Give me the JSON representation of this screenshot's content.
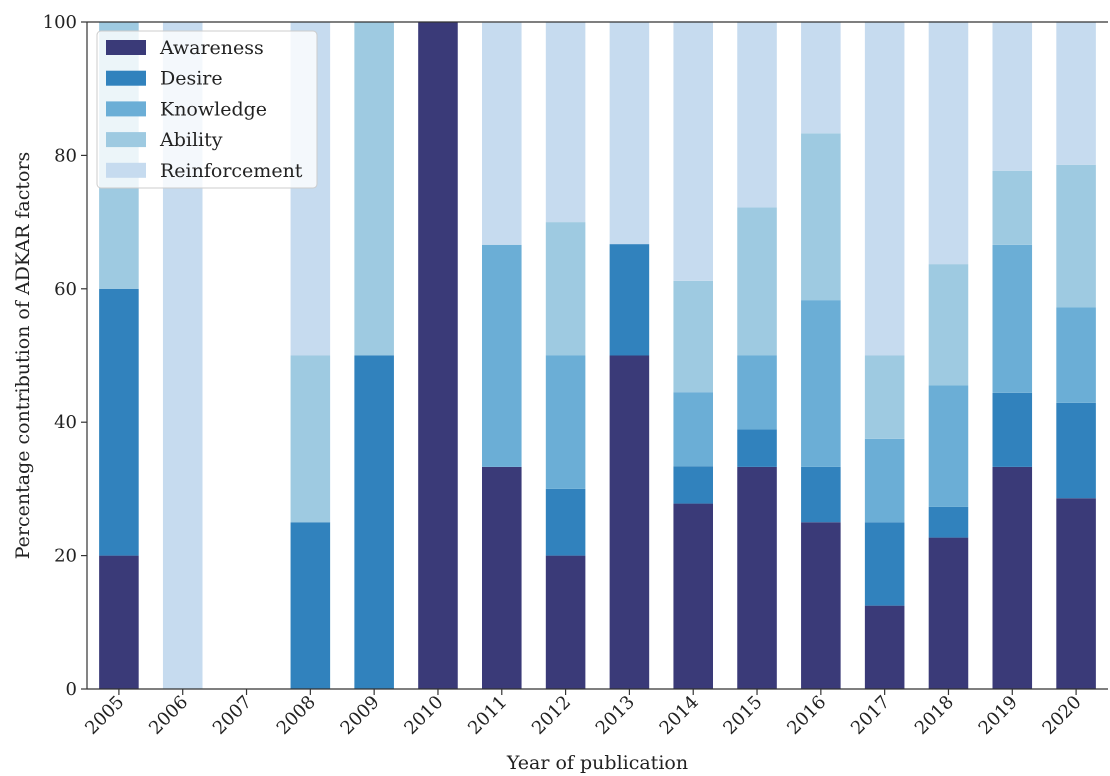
{
  "chart_data": {
    "type": "bar",
    "stacked": true,
    "title": "",
    "xlabel": "Year of publication",
    "ylabel": "Percentage contribution of ADKAR factors",
    "ylim": [
      0,
      100
    ],
    "yticks": [
      0,
      20,
      40,
      60,
      80,
      100
    ],
    "grid": false,
    "legend_position": "top-left",
    "categories": [
      "2005",
      "2006",
      "2007",
      "2008",
      "2009",
      "2010",
      "2011",
      "2012",
      "2013",
      "2014",
      "2015",
      "2016",
      "2017",
      "2018",
      "2019",
      "2020"
    ],
    "series": [
      {
        "name": "Awareness",
        "color": "#3a3a78",
        "values": [
          20,
          0,
          0,
          0,
          0,
          100,
          33.3,
          20,
          50,
          27.8,
          33.3,
          25,
          12.5,
          22.7,
          33.3,
          28.6
        ]
      },
      {
        "name": "Desire",
        "color": "#3182bd",
        "values": [
          40,
          0,
          0,
          25,
          50,
          0,
          0,
          10,
          16.7,
          5.6,
          5.6,
          8.3,
          12.5,
          4.6,
          11.1,
          14.3
        ]
      },
      {
        "name": "Knowledge",
        "color": "#6baed6",
        "values": [
          0,
          0,
          0,
          0,
          0,
          0,
          33.3,
          20,
          0,
          11.1,
          11.1,
          25,
          12.5,
          18.2,
          22.2,
          14.3
        ]
      },
      {
        "name": "Ability",
        "color": "#9ecae1",
        "values": [
          40,
          0,
          0,
          25,
          50,
          0,
          0,
          20,
          0,
          16.7,
          22.2,
          25,
          12.5,
          18.2,
          11.1,
          21.4
        ]
      },
      {
        "name": "Reinforcement",
        "color": "#c6dbef",
        "values": [
          0,
          100,
          0,
          50,
          0,
          0,
          33.3,
          30,
          33.3,
          38.9,
          27.8,
          16.7,
          50,
          36.4,
          22.2,
          21.4
        ]
      }
    ]
  }
}
